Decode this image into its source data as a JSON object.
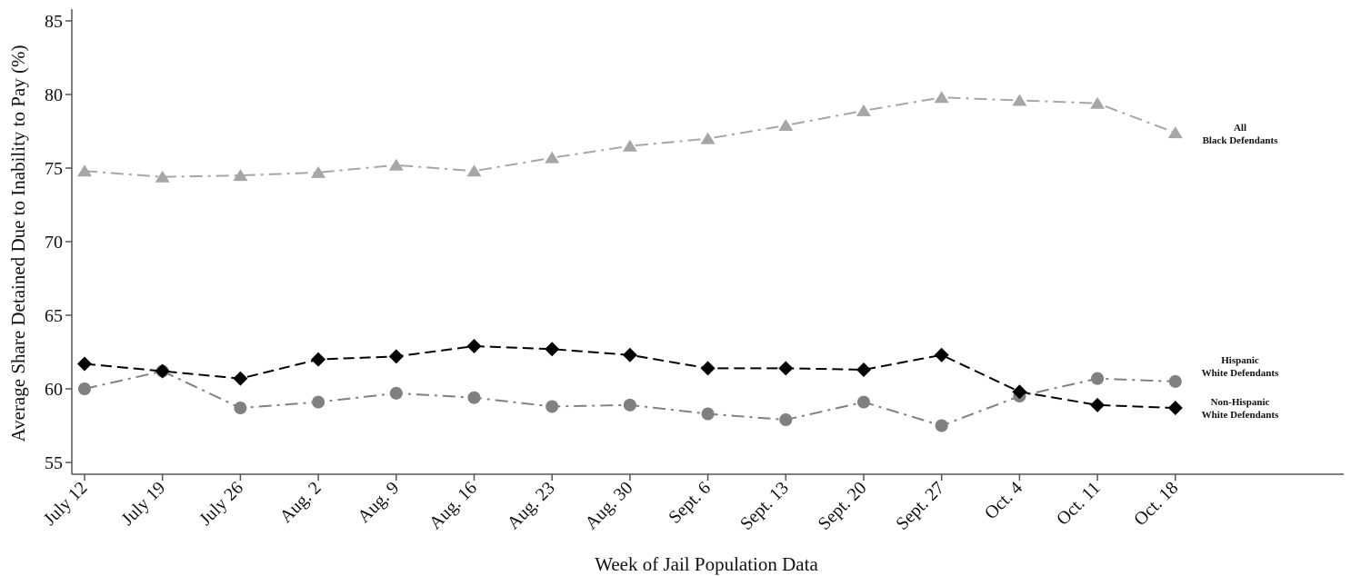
{
  "chart_data": {
    "type": "line",
    "xlabel": "Week of Jail Population Data",
    "ylabel": "Average Share Detained Due to Inability to Pay (%)",
    "ylim": [
      55,
      85
    ],
    "yticks": [
      55,
      60,
      65,
      70,
      75,
      80,
      85
    ],
    "grid": false,
    "legend": "none (direct labels at right end of lines)",
    "categories": [
      "July 12",
      "July 19",
      "July 26",
      "Aug. 2",
      "Aug. 9",
      "Aug. 16",
      "Aug. 23",
      "Aug. 30",
      "Sept. 6",
      "Sept. 13",
      "Sept. 20",
      "Sept. 27",
      "Oct. 4",
      "Oct. 11",
      "Oct. 18"
    ],
    "series": [
      {
        "label_lines": [
          "All",
          "Black Defendants"
        ],
        "marker": "triangle",
        "color": "#a6a6a6",
        "dash": "dash-dot",
        "values": [
          74.8,
          74.4,
          74.5,
          74.7,
          75.2,
          74.8,
          75.7,
          76.5,
          77.0,
          77.9,
          78.9,
          79.8,
          79.6,
          79.4,
          77.4
        ]
      },
      {
        "label_lines": [
          "Hispanic",
          "White Defendants"
        ],
        "marker": "circle",
        "color": "#808080",
        "dash": "dash-dot",
        "values": [
          60.0,
          61.2,
          58.7,
          59.1,
          59.7,
          59.4,
          58.8,
          58.9,
          58.3,
          57.9,
          59.1,
          57.5,
          59.5,
          60.7,
          60.5
        ]
      },
      {
        "label_lines": [
          "Non-Hispanic",
          "White Defendants"
        ],
        "marker": "diamond",
        "color": "#000000",
        "dash": "dashed",
        "values": [
          61.7,
          61.2,
          60.7,
          62.0,
          62.2,
          62.9,
          62.7,
          62.3,
          61.4,
          61.4,
          61.3,
          62.3,
          59.8,
          58.9,
          58.7
        ]
      }
    ],
    "axis_color": "#555555"
  }
}
